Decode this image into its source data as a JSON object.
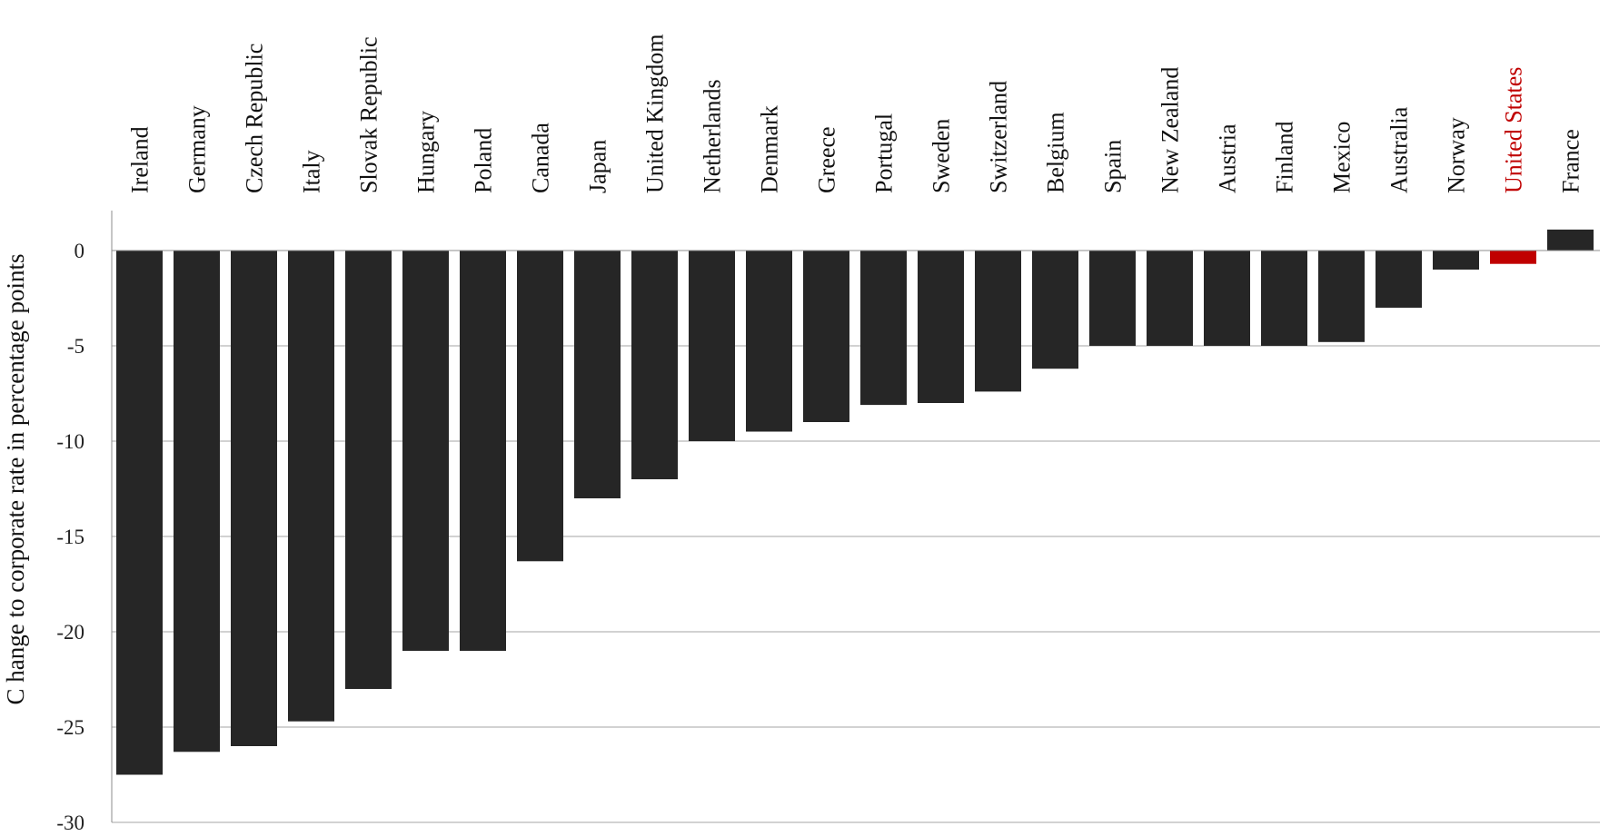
{
  "chart_data": {
    "type": "bar",
    "title": "",
    "xlabel": "",
    "ylabel": "C hange to corporate rate in percentage points",
    "ylim": [
      -30,
      2
    ],
    "yticks": [
      0,
      -5,
      -10,
      -15,
      -20,
      -25,
      -30
    ],
    "grid": true,
    "legend": "none",
    "categories": [
      "Ireland",
      "Germany",
      "Czech Republic",
      "Italy",
      "Slovak Republic",
      "Hungary",
      "Poland",
      "Canada",
      "Japan",
      "United Kingdom",
      "Netherlands",
      "Denmark",
      "Greece",
      "Portugal",
      "Sweden",
      "Switzerland",
      "Belgium",
      "Spain",
      "New Zealand",
      "Austria",
      "Finland",
      "Mexico",
      "Australia",
      "Norway",
      "United States",
      "France"
    ],
    "values": [
      -27.5,
      -26.3,
      -26.0,
      -24.7,
      -23.0,
      -21.0,
      -21.0,
      -16.3,
      -13.0,
      -12.0,
      -10.0,
      -9.5,
      -9.0,
      -8.1,
      -8.0,
      -7.4,
      -6.2,
      -5.0,
      -5.0,
      -5.0,
      -5.0,
      -4.8,
      -3.0,
      -1.0,
      -0.7,
      1.1
    ],
    "colors": {
      "default_bar": "#262626",
      "highlight_bar": "#c00000",
      "default_label": "#111111",
      "highlight_label": "#c00000",
      "gridline": "#a6a6a6",
      "axis": "#8c8c8c"
    },
    "highlight": "United States"
  }
}
